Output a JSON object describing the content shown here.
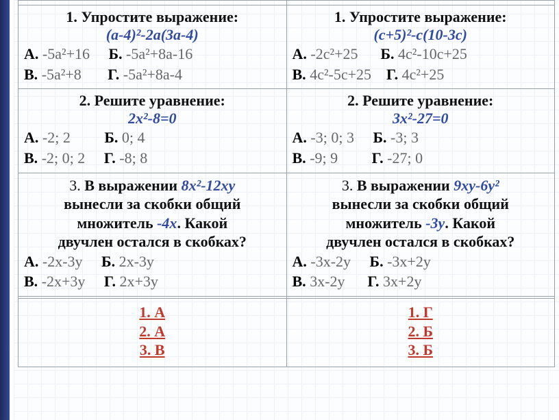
{
  "colors": {
    "expr": "#2f4aa0",
    "answer": "#c0392b",
    "border": "#98a0aa",
    "option_gray": "#666666"
  },
  "left": {
    "q1": {
      "title": "1. Упростите выражение:",
      "expression": "(a-4)²-2a(3a-4)",
      "optA_tag": "А.",
      "optA": " -5a²+16",
      "optB_tag": "Б.",
      "optB": " -5a²+8a-16",
      "optC_tag": "В.",
      "optC": " -5a²+8",
      "optD_tag": "Г.",
      "optD": " -5a²+8a-4"
    },
    "q2": {
      "title": "2. Решите уравнение:",
      "expression": "2x²-8=0",
      "optA_tag": "А.",
      "optA": " -2; 2",
      "optB_tag": "Б.",
      "optB": " 0; 4",
      "optC_tag": "В.",
      "optC": " -2; 0; 2",
      "optD_tag": "Г.",
      "optD": " -8; 8"
    },
    "q3": {
      "num": "3. ",
      "pre": "В выражении ",
      "expr": "8x²-12xy",
      "post1": "вынесли за скобки общий",
      "post2a": "множитель ",
      "factor": "-4x",
      "post2b": ". Какой",
      "post3": "двучлен остался в скобках?",
      "optA_tag": "А.",
      "optA": " -2x-3y",
      "optB_tag": "Б.",
      "optB": " 2x-3y",
      "optC_tag": "В.",
      "optC": " -2x+3y",
      "optD_tag": "Г.",
      "optD": " 2x+3y"
    },
    "answers": {
      "a1": "1. А",
      "a2": "2. А",
      "a3": "3. В"
    }
  },
  "right": {
    "q1": {
      "title": "1. Упростите выражение:",
      "expression": "(c+5)²-c(10-3c)",
      "optA_tag": "А.",
      "optA": " -2c²+25",
      "optB_tag": "Б.",
      "optB": " 4c²-10c+25",
      "optC_tag": "В.",
      "optC": " 4c²-5c+25",
      "optD_tag": "Г.",
      "optD": " 4c²+25"
    },
    "q2": {
      "title": "2. Решите уравнение:",
      "expression": "3x²-27=0",
      "optA_tag": "А.",
      "optA": " -3; 0; 3",
      "optB_tag": "Б.",
      "optB": " -3; 3",
      "optC_tag": "В.",
      "optC": " -9; 9",
      "optD_tag": "Г.",
      "optD": " -27; 0"
    },
    "q3": {
      "num": "3. ",
      "pre": "В выражении ",
      "expr": "9xy-6y²",
      "post1": "вынесли за скобки общий",
      "post2a": "множитель ",
      "factor": "-3y",
      "post2b": ". Какой",
      "post3": "двучлен остался в скобках?",
      "optA_tag": "А.",
      "optA": " -3x-2y",
      "optB_tag": "Б.",
      "optB": " -3x+2y",
      "optC_tag": "В.",
      "optC": " 3x-2y",
      "optD_tag": "Г.",
      "optD": " 3x+2y"
    },
    "answers": {
      "a1": "1. Г",
      "a2": "2. Б",
      "a3": "3. Б"
    }
  }
}
